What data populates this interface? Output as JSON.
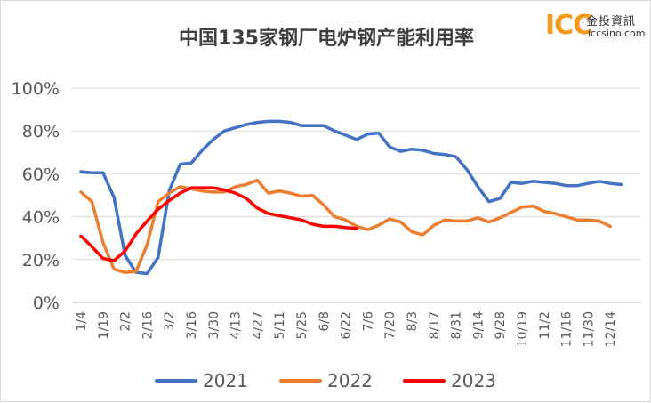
{
  "logo": {
    "mark": "ICC",
    "cn": "金投資訊",
    "en": "iccsino.com"
  },
  "chart_data": {
    "type": "line",
    "title": "中国135家钢厂电炉钢产能利用率",
    "xlabel": "",
    "ylabel": "",
    "ylim": [
      0,
      100
    ],
    "y_ticks": [
      "0%",
      "20%",
      "40%",
      "60%",
      "80%",
      "100%"
    ],
    "x_ticks": [
      "1/4",
      "1/19",
      "2/2",
      "2/16",
      "3/2",
      "3/16",
      "3/30",
      "4/13",
      "4/27",
      "5/11",
      "5/25",
      "6/8",
      "6/22",
      "7/6",
      "7/20",
      "8/3",
      "8/17",
      "8/31",
      "9/14",
      "9/28",
      "10/19",
      "11/2",
      "11/16",
      "11/30",
      "12/14"
    ],
    "grid": true,
    "legend": "bottom",
    "series": [
      {
        "name": "2021",
        "color": "#4472c4",
        "values": [
          61,
          60.5,
          60.5,
          49,
          22,
          14,
          13.5,
          21,
          52,
          64.5,
          65,
          71,
          76,
          80,
          81.5,
          83,
          84,
          84.5,
          84.5,
          84,
          82.5,
          82.5,
          82.5,
          80,
          78,
          76,
          78.5,
          79,
          72.5,
          70.5,
          71.5,
          71,
          69.5,
          69,
          68,
          62,
          54,
          47,
          48.5,
          56,
          55.5,
          56.5,
          56,
          55.5,
          54.5,
          54.5,
          55.5,
          56.5,
          55.5,
          55
        ]
      },
      {
        "name": "2022",
        "color": "#ed7d31",
        "values": [
          51.5,
          47,
          28,
          15.5,
          14,
          14.5,
          27,
          47,
          51,
          54,
          53,
          52,
          51.5,
          51.5,
          54,
          55,
          57,
          51,
          52,
          51,
          49.5,
          50,
          45.5,
          40,
          38.5,
          35.5,
          34,
          36,
          39,
          37.5,
          33,
          31.5,
          36,
          38.5,
          38,
          38,
          39.5,
          37.5,
          39.5,
          42,
          44.5,
          45,
          42.5,
          41.5,
          40,
          38.5,
          38.5,
          38,
          35.5
        ]
      },
      {
        "name": "2023",
        "color": "#ff0000",
        "values": [
          31,
          26,
          20.5,
          19.5,
          24,
          32,
          38,
          43.5,
          47.5,
          51,
          53.5,
          53.5,
          53.5,
          52.5,
          51,
          48.5,
          44,
          41.5,
          40.5,
          39.5,
          38.5,
          36.5,
          35.5,
          35.5,
          35,
          34.5
        ]
      }
    ]
  }
}
